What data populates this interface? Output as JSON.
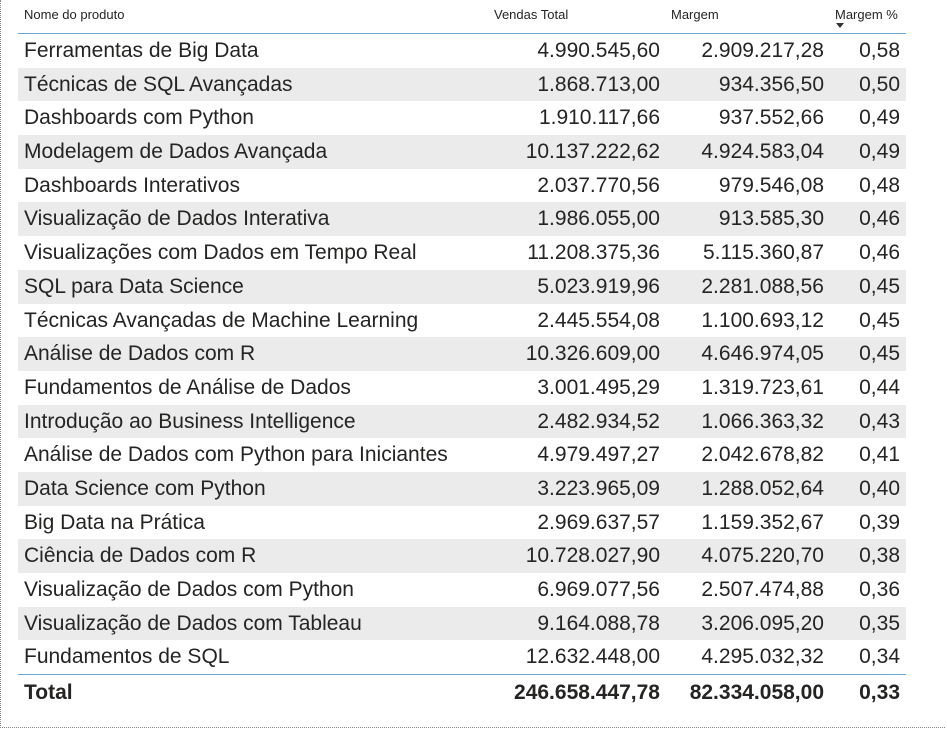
{
  "table": {
    "headers": {
      "name": "Nome do produto",
      "sales": "Vendas Total",
      "margin": "Margem",
      "pct": "Margem %"
    },
    "sort": {
      "column": "Margem %",
      "direction": "descending"
    },
    "rows": [
      {
        "name": "Ferramentas de Big Data",
        "sales": "4.990.545,60",
        "margin": "2.909.217,28",
        "pct": "0,58"
      },
      {
        "name": "Técnicas de SQL Avançadas",
        "sales": "1.868.713,00",
        "margin": "934.356,50",
        "pct": "0,50"
      },
      {
        "name": "Dashboards com Python",
        "sales": "1.910.117,66",
        "margin": "937.552,66",
        "pct": "0,49"
      },
      {
        "name": "Modelagem de Dados Avançada",
        "sales": "10.137.222,62",
        "margin": "4.924.583,04",
        "pct": "0,49"
      },
      {
        "name": "Dashboards Interativos",
        "sales": "2.037.770,56",
        "margin": "979.546,08",
        "pct": "0,48"
      },
      {
        "name": "Visualização de Dados Interativa",
        "sales": "1.986.055,00",
        "margin": "913.585,30",
        "pct": "0,46"
      },
      {
        "name": "Visualizações com Dados em Tempo Real",
        "sales": "11.208.375,36",
        "margin": "5.115.360,87",
        "pct": "0,46"
      },
      {
        "name": "SQL para Data Science",
        "sales": "5.023.919,96",
        "margin": "2.281.088,56",
        "pct": "0,45"
      },
      {
        "name": "Técnicas Avançadas de Machine Learning",
        "sales": "2.445.554,08",
        "margin": "1.100.693,12",
        "pct": "0,45"
      },
      {
        "name": "Análise de Dados com R",
        "sales": "10.326.609,00",
        "margin": "4.646.974,05",
        "pct": "0,45"
      },
      {
        "name": "Fundamentos de Análise de Dados",
        "sales": "3.001.495,29",
        "margin": "1.319.723,61",
        "pct": "0,44"
      },
      {
        "name": "Introdução ao Business Intelligence",
        "sales": "2.482.934,52",
        "margin": "1.066.363,32",
        "pct": "0,43"
      },
      {
        "name": "Análise de Dados com Python para Iniciantes",
        "sales": "4.979.497,27",
        "margin": "2.042.678,82",
        "pct": "0,41"
      },
      {
        "name": "Data Science com Python",
        "sales": "3.223.965,09",
        "margin": "1.288.052,64",
        "pct": "0,40"
      },
      {
        "name": "Big Data na Prática",
        "sales": "2.969.637,57",
        "margin": "1.159.352,67",
        "pct": "0,39"
      },
      {
        "name": "Ciência de Dados com R",
        "sales": "10.728.027,90",
        "margin": "4.075.220,70",
        "pct": "0,38"
      },
      {
        "name": "Visualização de Dados com Python",
        "sales": "6.969.077,56",
        "margin": "2.507.474,88",
        "pct": "0,36"
      },
      {
        "name": "Visualização de Dados com Tableau",
        "sales": "9.164.088,78",
        "margin": "3.206.095,20",
        "pct": "0,35"
      },
      {
        "name": "Fundamentos de SQL",
        "sales": "12.632.448,00",
        "margin": "4.295.032,32",
        "pct": "0,34"
      }
    ],
    "total": {
      "label": "Total",
      "sales": "246.658.447,78",
      "margin": "82.334.058,00",
      "pct": "0,33"
    }
  },
  "icons": {
    "sort": "sort-descending-icon"
  }
}
